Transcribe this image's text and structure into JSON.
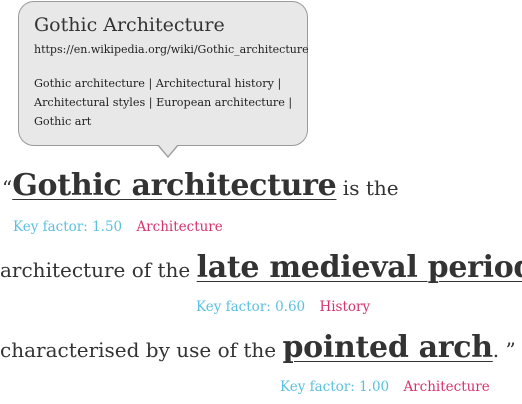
{
  "tooltip": {
    "title": "Gothic Architecture",
    "url": "https://en.wikipedia.org/wiki/Gothic_architecture",
    "categories_line1": "Gothic architecture | Architectural history |",
    "categories_line2": "Architectural styles | European architecture |",
    "categories_line3": "Gothic art"
  },
  "text": {
    "open_quote": "“",
    "entity1": "Gothic architecture",
    "after1": " is the",
    "before2": "architecture of the ",
    "entity2": "late medieval period",
    "after2": ",",
    "before3": "characterised by use of the ",
    "entity3": "pointed arch",
    "after3": ". ”"
  },
  "annotations": [
    {
      "factor": "Key factor: 1.50",
      "category": "Architecture"
    },
    {
      "factor": "Key factor: 0.60",
      "category": "History"
    },
    {
      "factor": "Key factor: 1.00",
      "category": "Architecture"
    }
  ],
  "colors": {
    "factor": "#5bc0de",
    "category": "#d6336c",
    "tooltip_bg": "#e8e8e8"
  }
}
